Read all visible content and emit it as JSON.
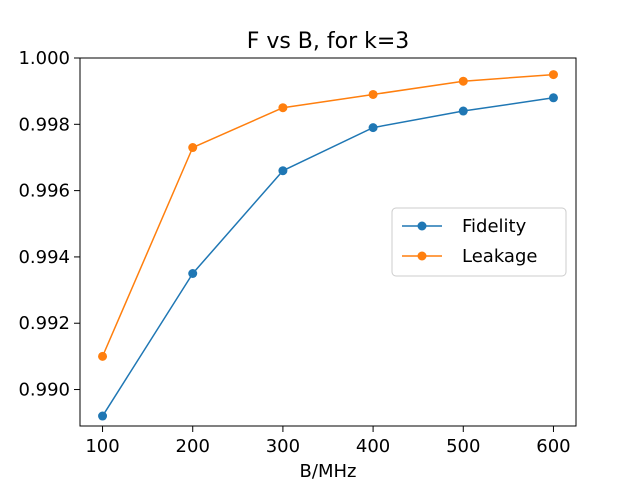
{
  "chart_data": {
    "type": "line",
    "title": "F vs B, for k=3",
    "xlabel": "B/MHz",
    "ylabel": "",
    "x": [
      100,
      200,
      300,
      400,
      500,
      600
    ],
    "x_ticks": [
      "100",
      "200",
      "300",
      "400",
      "500",
      "600"
    ],
    "y_ticks": [
      "0.990",
      "0.992",
      "0.994",
      "0.996",
      "0.998",
      "1.000"
    ],
    "y_tick_values": [
      0.99,
      0.992,
      0.994,
      0.996,
      0.998,
      1.0
    ],
    "xlim": [
      75,
      625
    ],
    "ylim": [
      0.9889,
      1.0
    ],
    "grid": false,
    "legend_position": "center-right",
    "series": [
      {
        "name": "Fidelity",
        "color": "#1f77b4",
        "values": [
          0.9892,
          0.9935,
          0.9966,
          0.9979,
          0.9984,
          0.9988
        ]
      },
      {
        "name": "Leakage",
        "color": "#ff7f0e",
        "values": [
          0.991,
          0.9973,
          0.9985,
          0.9989,
          0.9993,
          0.9995
        ]
      }
    ]
  }
}
